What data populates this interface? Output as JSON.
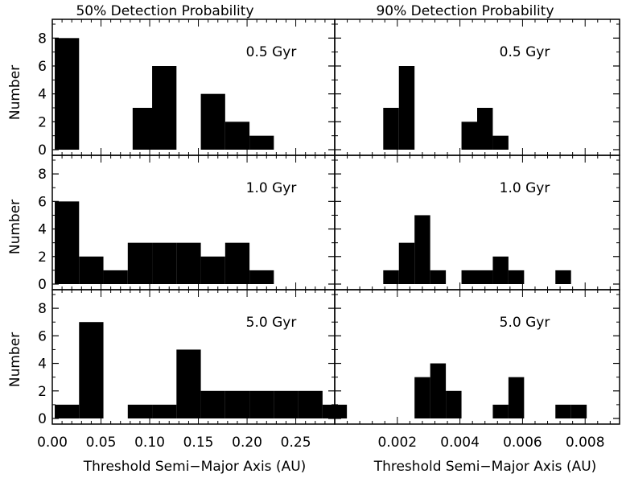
{
  "columns": [
    {
      "title": "50% Detection Probability",
      "xlabel": "Threshold Semi−Major Axis (AU)"
    },
    {
      "title": "90% Detection Probability",
      "xlabel": "Threshold Semi−Major Axis (AU)"
    }
  ],
  "ylabel": "Number",
  "bar_color": "#000000",
  "chart_data": [
    {
      "type": "bar",
      "panel": "50% Detection Probability, 0.5 Gyr",
      "annotation": "0.5 Gyr",
      "xlim": [
        0.0,
        0.29
      ],
      "ylim": [
        0,
        9
      ],
      "x": [
        0.0025,
        0.0375,
        0.0825,
        0.1025,
        0.1525,
        0.1775,
        0.2025
      ],
      "values": [
        8,
        0,
        3,
        6,
        4,
        2,
        1
      ],
      "bin_width": 0.025,
      "x_ticks": [
        0.0,
        0.05,
        0.1,
        0.15,
        0.2,
        0.25
      ],
      "x_tick_labels": [
        "0.00",
        "0.05",
        "0.10",
        "0.15",
        "0.20",
        "0.25"
      ],
      "y_ticks": [
        0,
        2,
        4,
        6,
        8
      ],
      "y_tick_labels": [
        "0",
        "2",
        "4",
        "6",
        "8"
      ]
    },
    {
      "type": "bar",
      "panel": "90% Detection Probability, 0.5 Gyr",
      "annotation": "0.5 Gyr",
      "xlim": [
        0.0,
        0.0091
      ],
      "ylim": [
        0,
        9
      ],
      "x": [
        0.00155,
        0.00205,
        0.00355,
        0.00405,
        0.00455,
        0.00505
      ],
      "values": [
        3,
        6,
        0,
        2,
        3,
        1
      ],
      "bin_width": 0.0005,
      "x_ticks": [
        0.002,
        0.004,
        0.006,
        0.008
      ],
      "x_tick_labels": [
        "0.002",
        "0.004",
        "0.006",
        "0.008"
      ],
      "y_ticks": [
        0,
        2,
        4,
        6,
        8
      ],
      "y_tick_labels": [
        "0",
        "2",
        "4",
        "6",
        "8"
      ]
    },
    {
      "type": "bar",
      "panel": "50% Detection Probability, 1.0 Gyr",
      "annotation": "1.0 Gyr",
      "xlim": [
        0.0,
        0.29
      ],
      "ylim": [
        0,
        9
      ],
      "x": [
        0.0025,
        0.0275,
        0.0525,
        0.0775,
        0.1025,
        0.1275,
        0.1525,
        0.1775,
        0.2025
      ],
      "values": [
        6,
        2,
        1,
        3,
        3,
        3,
        2,
        3,
        1
      ],
      "bin_width": 0.025,
      "x_ticks": [
        0.0,
        0.05,
        0.1,
        0.15,
        0.2,
        0.25
      ],
      "x_tick_labels": [
        "0.00",
        "0.05",
        "0.10",
        "0.15",
        "0.20",
        "0.25"
      ],
      "y_ticks": [
        0,
        2,
        4,
        6,
        8
      ],
      "y_tick_labels": [
        "0",
        "2",
        "4",
        "6",
        "8"
      ]
    },
    {
      "type": "bar",
      "panel": "90% Detection Probability, 1.0 Gyr",
      "annotation": "1.0 Gyr",
      "xlim": [
        0.0,
        0.0091
      ],
      "ylim": [
        0,
        9
      ],
      "x": [
        0.00155,
        0.00205,
        0.00255,
        0.00305,
        0.00405,
        0.00455,
        0.00505,
        0.00555,
        0.00655,
        0.00705
      ],
      "values": [
        1,
        3,
        5,
        1,
        1,
        1,
        2,
        1,
        0,
        1
      ],
      "bin_width": 0.0005,
      "x_ticks": [
        0.002,
        0.004,
        0.006,
        0.008
      ],
      "x_tick_labels": [
        "0.002",
        "0.004",
        "0.006",
        "0.008"
      ],
      "y_ticks": [
        0,
        2,
        4,
        6,
        8
      ],
      "y_tick_labels": [
        "0",
        "2",
        "4",
        "6",
        "8"
      ]
    },
    {
      "type": "bar",
      "panel": "50% Detection Probability, 5.0 Gyr",
      "annotation": "5.0 Gyr",
      "xlim": [
        0.0,
        0.29
      ],
      "ylim": [
        0,
        9
      ],
      "x": [
        0.0025,
        0.0275,
        0.0525,
        0.0775,
        0.1025,
        0.1275,
        0.1525,
        0.1775,
        0.2025,
        0.2275,
        0.2525,
        0.2775
      ],
      "values": [
        1,
        7,
        0,
        1,
        1,
        5,
        2,
        2,
        2,
        2,
        2,
        1
      ],
      "bin_width": 0.025,
      "x_ticks": [
        0.0,
        0.05,
        0.1,
        0.15,
        0.2,
        0.25
      ],
      "x_tick_labels": [
        "0.00",
        "0.05",
        "0.10",
        "0.15",
        "0.20",
        "0.25"
      ],
      "y_ticks": [
        0,
        2,
        4,
        6,
        8
      ],
      "y_tick_labels": [
        "0",
        "2",
        "4",
        "6",
        "8"
      ]
    },
    {
      "type": "bar",
      "panel": "90% Detection Probability, 5.0 Gyr",
      "annotation": "5.0 Gyr",
      "xlim": [
        0.0,
        0.0091
      ],
      "ylim": [
        0,
        9
      ],
      "x": [
        0.00255,
        0.00305,
        0.00355,
        0.00455,
        0.00505,
        0.00555,
        0.00655,
        0.00705,
        0.00755
      ],
      "values": [
        3,
        4,
        2,
        0,
        1,
        3,
        0,
        1,
        1
      ],
      "bin_width": 0.0005,
      "x_ticks": [
        0.002,
        0.004,
        0.006,
        0.008
      ],
      "x_tick_labels": [
        "0.002",
        "0.004",
        "0.006",
        "0.008"
      ],
      "y_ticks": [
        0,
        2,
        4,
        6,
        8
      ],
      "y_tick_labels": [
        "0",
        "2",
        "4",
        "6",
        "8"
      ]
    }
  ]
}
